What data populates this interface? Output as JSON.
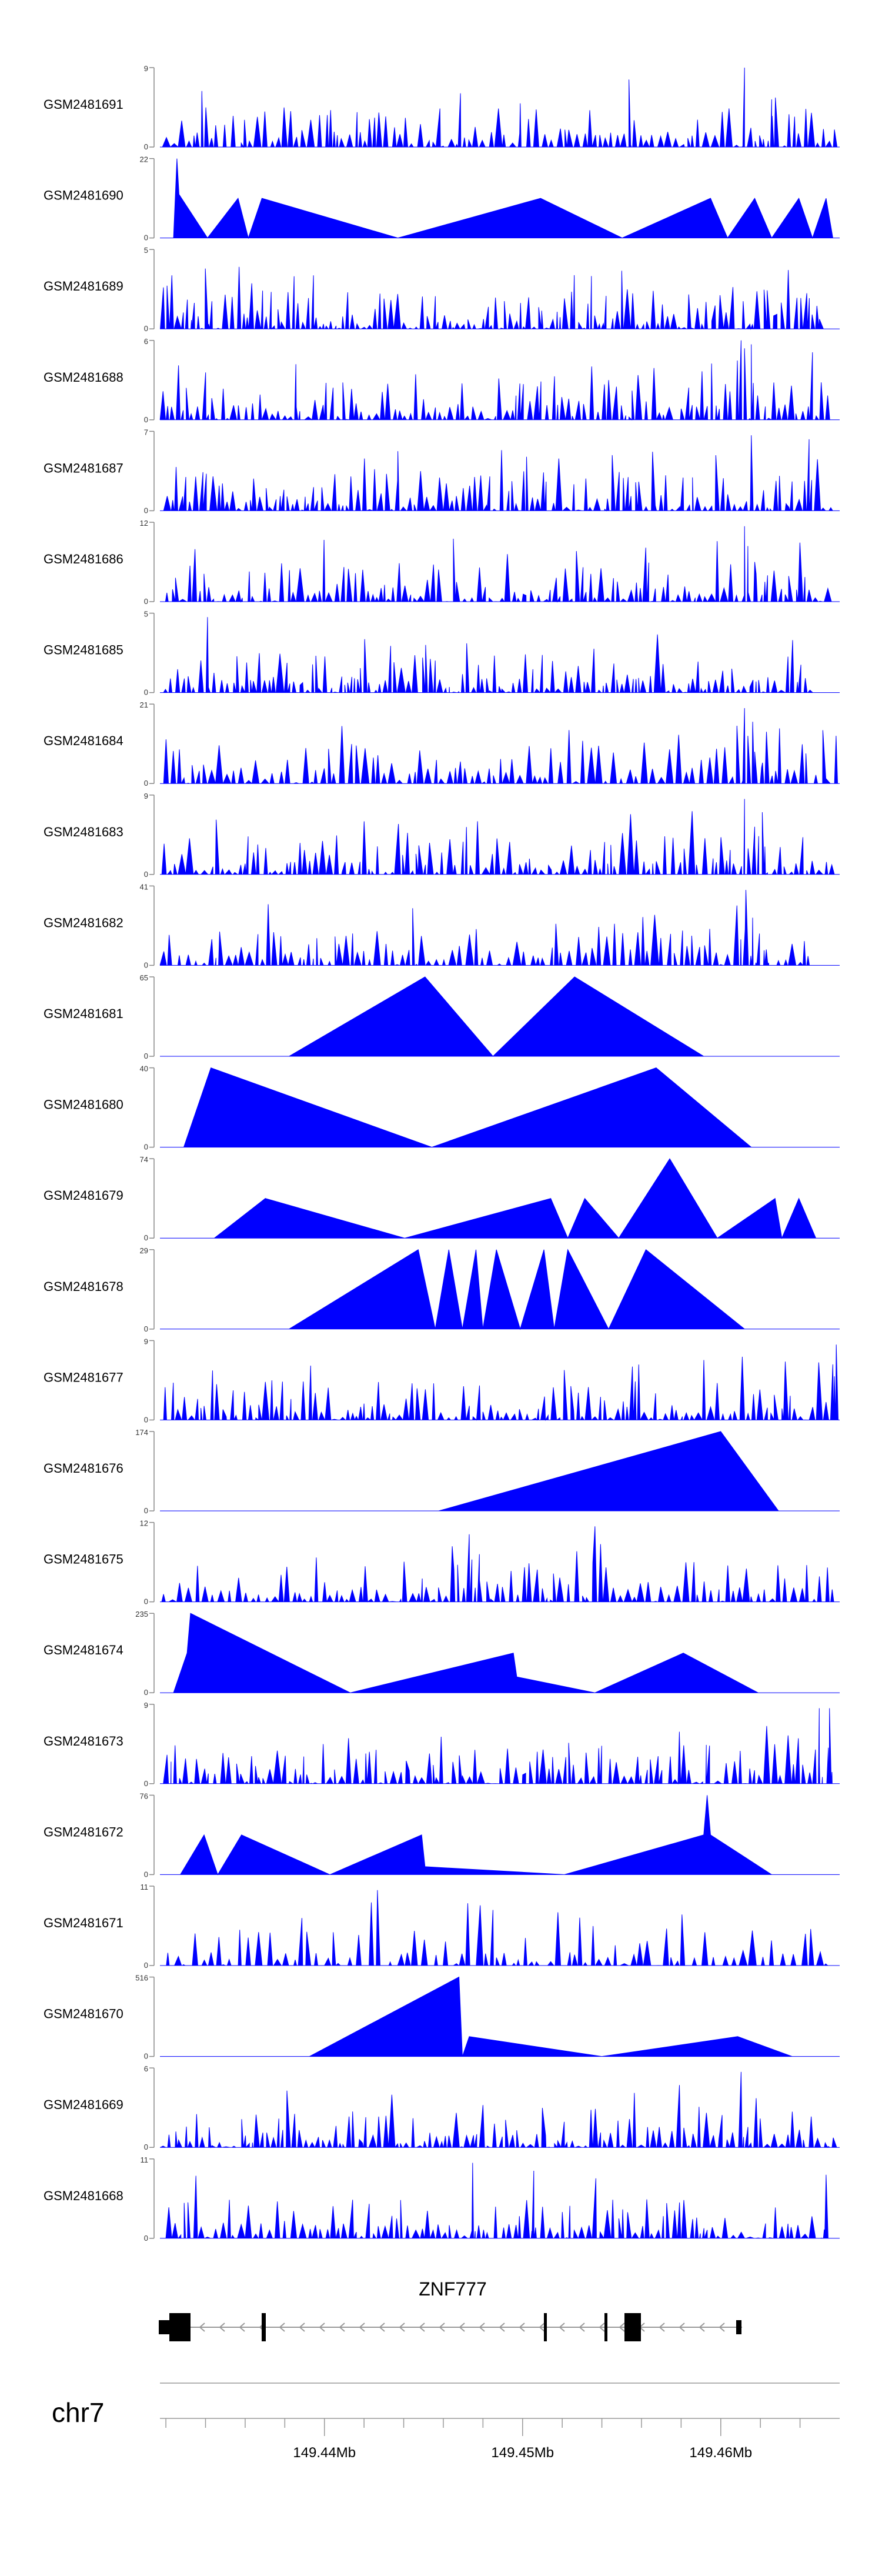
{
  "chart_data": {
    "type": "area",
    "chromosome": "chr7",
    "gene": {
      "name": "ZNF777"
    },
    "x_ticks": [
      "149.44Mb",
      "149.45Mb",
      "149.46Mb"
    ],
    "x_tick_values_mb": [
      149.44,
      149.45,
      149.46
    ],
    "xlim_mb": [
      149.4317,
      149.466
    ],
    "track_color": "#0000ff",
    "tracks": [
      {
        "label": "GSM2481691",
        "ymax": 9,
        "shape": "noise",
        "seed": 1,
        "density": 110,
        "peaks": [
          [
            0.69,
            0.85
          ],
          [
            0.86,
            1.0
          ],
          [
            0.53,
            0.55
          ],
          [
            0.9,
            0.6
          ]
        ]
      },
      {
        "label": "GSM2481690",
        "ymax": 22,
        "shape": "poly",
        "points": [
          [
            0.0,
            0.0
          ],
          [
            0.02,
            0.0
          ],
          [
            0.025,
            1.0
          ],
          [
            0.028,
            0.55
          ],
          [
            0.07,
            0.0
          ],
          [
            0.115,
            0.5
          ],
          [
            0.13,
            0.0
          ],
          [
            0.15,
            0.5
          ],
          [
            0.35,
            0.0
          ],
          [
            0.56,
            0.5
          ],
          [
            0.68,
            0.0
          ],
          [
            0.81,
            0.5
          ],
          [
            0.835,
            0.0
          ],
          [
            0.875,
            0.5
          ],
          [
            0.9,
            0.0
          ],
          [
            0.94,
            0.5
          ],
          [
            0.96,
            0.0
          ],
          [
            0.98,
            0.5
          ],
          [
            0.99,
            0.0
          ],
          [
            1.0,
            0.0
          ]
        ]
      },
      {
        "label": "GSM2481689",
        "ymax": 5,
        "shape": "noise",
        "seed": 3,
        "density": 140,
        "peaks": []
      },
      {
        "label": "GSM2481688",
        "ymax": 6,
        "shape": "noise",
        "seed": 4,
        "density": 120,
        "peaks": [
          [
            0.855,
            1.0
          ],
          [
            0.87,
            0.95
          ],
          [
            0.86,
            0.9
          ],
          [
            0.2,
            0.7
          ],
          [
            0.96,
            0.85
          ]
        ]
      },
      {
        "label": "GSM2481687",
        "ymax": 7,
        "shape": "noise",
        "seed": 5,
        "density": 130,
        "peaks": [
          [
            0.87,
            0.95
          ],
          [
            0.955,
            0.9
          ],
          [
            0.35,
            0.75
          ]
        ]
      },
      {
        "label": "GSM2481686",
        "ymax": 12,
        "shape": "noise",
        "seed": 6,
        "density": 120,
        "peaks": [
          [
            0.86,
            0.95
          ],
          [
            0.865,
            0.7
          ],
          [
            0.875,
            0.5
          ],
          [
            0.89,
            0.25
          ]
        ]
      },
      {
        "label": "GSM2481685",
        "ymax": 5,
        "shape": "noise",
        "seed": 7,
        "density": 130,
        "peaks": [
          [
            0.07,
            0.95
          ]
        ]
      },
      {
        "label": "GSM2481684",
        "ymax": 21,
        "shape": "noise",
        "seed": 8,
        "density": 100,
        "peaks": [
          [
            0.86,
            0.95
          ],
          [
            0.865,
            0.6
          ],
          [
            0.875,
            0.4
          ],
          [
            0.885,
            0.2
          ]
        ]
      },
      {
        "label": "GSM2481683",
        "ymax": 9,
        "shape": "noise",
        "seed": 9,
        "density": 120,
        "peaks": [
          [
            0.86,
            0.95
          ],
          [
            0.875,
            0.6
          ],
          [
            0.89,
            0.35
          ]
        ]
      },
      {
        "label": "GSM2481682",
        "ymax": 41,
        "shape": "noise",
        "seed": 10,
        "density": 100,
        "peaks": [
          [
            0.862,
            0.95
          ],
          [
            0.872,
            0.6
          ],
          [
            0.882,
            0.4
          ],
          [
            0.892,
            0.2
          ]
        ]
      },
      {
        "label": "GSM2481681",
        "ymax": 65,
        "shape": "poly",
        "points": [
          [
            0.0,
            0.0
          ],
          [
            0.19,
            0.0
          ],
          [
            0.39,
            1.0
          ],
          [
            0.49,
            0.0
          ],
          [
            0.61,
            1.0
          ],
          [
            0.8,
            0.0
          ],
          [
            1.0,
            0.0
          ]
        ]
      },
      {
        "label": "GSM2481680",
        "ymax": 40,
        "shape": "poly",
        "points": [
          [
            0.0,
            0.0
          ],
          [
            0.035,
            0.0
          ],
          [
            0.075,
            1.0
          ],
          [
            0.4,
            0.0
          ],
          [
            0.73,
            1.0
          ],
          [
            0.87,
            0.0
          ],
          [
            1.0,
            0.0
          ]
        ]
      },
      {
        "label": "GSM2481679",
        "ymax": 74,
        "shape": "poly",
        "points": [
          [
            0.0,
            0.0
          ],
          [
            0.08,
            0.0
          ],
          [
            0.155,
            0.5
          ],
          [
            0.36,
            0.0
          ],
          [
            0.575,
            0.5
          ],
          [
            0.6,
            0.0
          ],
          [
            0.625,
            0.5
          ],
          [
            0.675,
            0.0
          ],
          [
            0.75,
            1.0
          ],
          [
            0.82,
            0.0
          ],
          [
            0.905,
            0.5
          ],
          [
            0.915,
            0.0
          ],
          [
            0.94,
            0.5
          ],
          [
            0.965,
            0.0
          ],
          [
            1.0,
            0.0
          ]
        ]
      },
      {
        "label": "GSM2481678",
        "ymax": 29,
        "shape": "poly",
        "points": [
          [
            0.0,
            0.0
          ],
          [
            0.19,
            0.0
          ],
          [
            0.38,
            1.0
          ],
          [
            0.405,
            0.0
          ],
          [
            0.425,
            1.0
          ],
          [
            0.445,
            0.0
          ],
          [
            0.465,
            1.0
          ],
          [
            0.475,
            0.0
          ],
          [
            0.495,
            1.0
          ],
          [
            0.53,
            0.0
          ],
          [
            0.565,
            1.0
          ],
          [
            0.58,
            0.0
          ],
          [
            0.6,
            1.0
          ],
          [
            0.66,
            0.0
          ],
          [
            0.715,
            1.0
          ],
          [
            0.86,
            0.0
          ],
          [
            1.0,
            0.0
          ]
        ]
      },
      {
        "label": "GSM2481677",
        "ymax": 9,
        "shape": "noise",
        "seed": 14,
        "density": 120,
        "peaks": [
          [
            0.995,
            0.95
          ],
          [
            0.99,
            0.7
          ]
        ]
      },
      {
        "label": "GSM2481676",
        "ymax": 174,
        "shape": "poly",
        "points": [
          [
            0.0,
            0.0
          ],
          [
            0.41,
            0.0
          ],
          [
            0.825,
            1.0
          ],
          [
            0.91,
            0.0
          ],
          [
            1.0,
            0.0
          ]
        ]
      },
      {
        "label": "GSM2481675",
        "ymax": 12,
        "shape": "noise",
        "seed": 16,
        "density": 110,
        "peaks": [
          [
            0.64,
            0.95
          ],
          [
            0.455,
            0.85
          ],
          [
            0.43,
            0.7
          ],
          [
            0.47,
            0.6
          ]
        ]
      },
      {
        "label": "GSM2481674",
        "ymax": 235,
        "shape": "poly",
        "points": [
          [
            0.0,
            0.0
          ],
          [
            0.02,
            0.0
          ],
          [
            0.04,
            0.5
          ],
          [
            0.045,
            1.0
          ],
          [
            0.28,
            0.0
          ],
          [
            0.52,
            0.5
          ],
          [
            0.525,
            0.2
          ],
          [
            0.64,
            0.0
          ],
          [
            0.77,
            0.5
          ],
          [
            0.88,
            0.0
          ],
          [
            1.0,
            0.0
          ]
        ]
      },
      {
        "label": "GSM2481673",
        "ymax": 9,
        "shape": "noise",
        "seed": 18,
        "density": 120,
        "peaks": [
          [
            0.97,
            0.95
          ],
          [
            0.985,
            0.95
          ]
        ]
      },
      {
        "label": "GSM2481672",
        "ymax": 76,
        "shape": "poly",
        "points": [
          [
            0.0,
            0.0
          ],
          [
            0.03,
            0.0
          ],
          [
            0.065,
            0.5
          ],
          [
            0.085,
            0.0
          ],
          [
            0.12,
            0.5
          ],
          [
            0.25,
            0.0
          ],
          [
            0.385,
            0.5
          ],
          [
            0.39,
            0.1
          ],
          [
            0.595,
            0.0
          ],
          [
            0.8,
            0.5
          ],
          [
            0.805,
            1.0
          ],
          [
            0.81,
            0.5
          ],
          [
            0.9,
            0.0
          ],
          [
            1.0,
            0.0
          ]
        ]
      },
      {
        "label": "GSM2481671",
        "ymax": 11,
        "shape": "noise",
        "seed": 20,
        "density": 80,
        "peaks": [
          [
            0.32,
            0.95
          ],
          [
            0.49,
            0.7
          ]
        ]
      },
      {
        "label": "GSM2481670",
        "ymax": 516,
        "shape": "poly",
        "points": [
          [
            0.0,
            0.0
          ],
          [
            0.22,
            0.0
          ],
          [
            0.44,
            1.0
          ],
          [
            0.445,
            0.0
          ],
          [
            0.455,
            0.25
          ],
          [
            0.65,
            0.0
          ],
          [
            0.85,
            0.25
          ],
          [
            0.93,
            0.0
          ],
          [
            1.0,
            0.0
          ]
        ]
      },
      {
        "label": "GSM2481669",
        "ymax": 6,
        "shape": "noise",
        "seed": 22,
        "density": 130,
        "peaks": [
          [
            0.855,
            0.95
          ]
        ]
      },
      {
        "label": "GSM2481668",
        "ymax": 11,
        "shape": "noise",
        "seed": 23,
        "density": 110,
        "peaks": [
          [
            0.46,
            0.95
          ],
          [
            0.55,
            0.85
          ],
          [
            0.98,
            0.8
          ]
        ]
      }
    ]
  }
}
